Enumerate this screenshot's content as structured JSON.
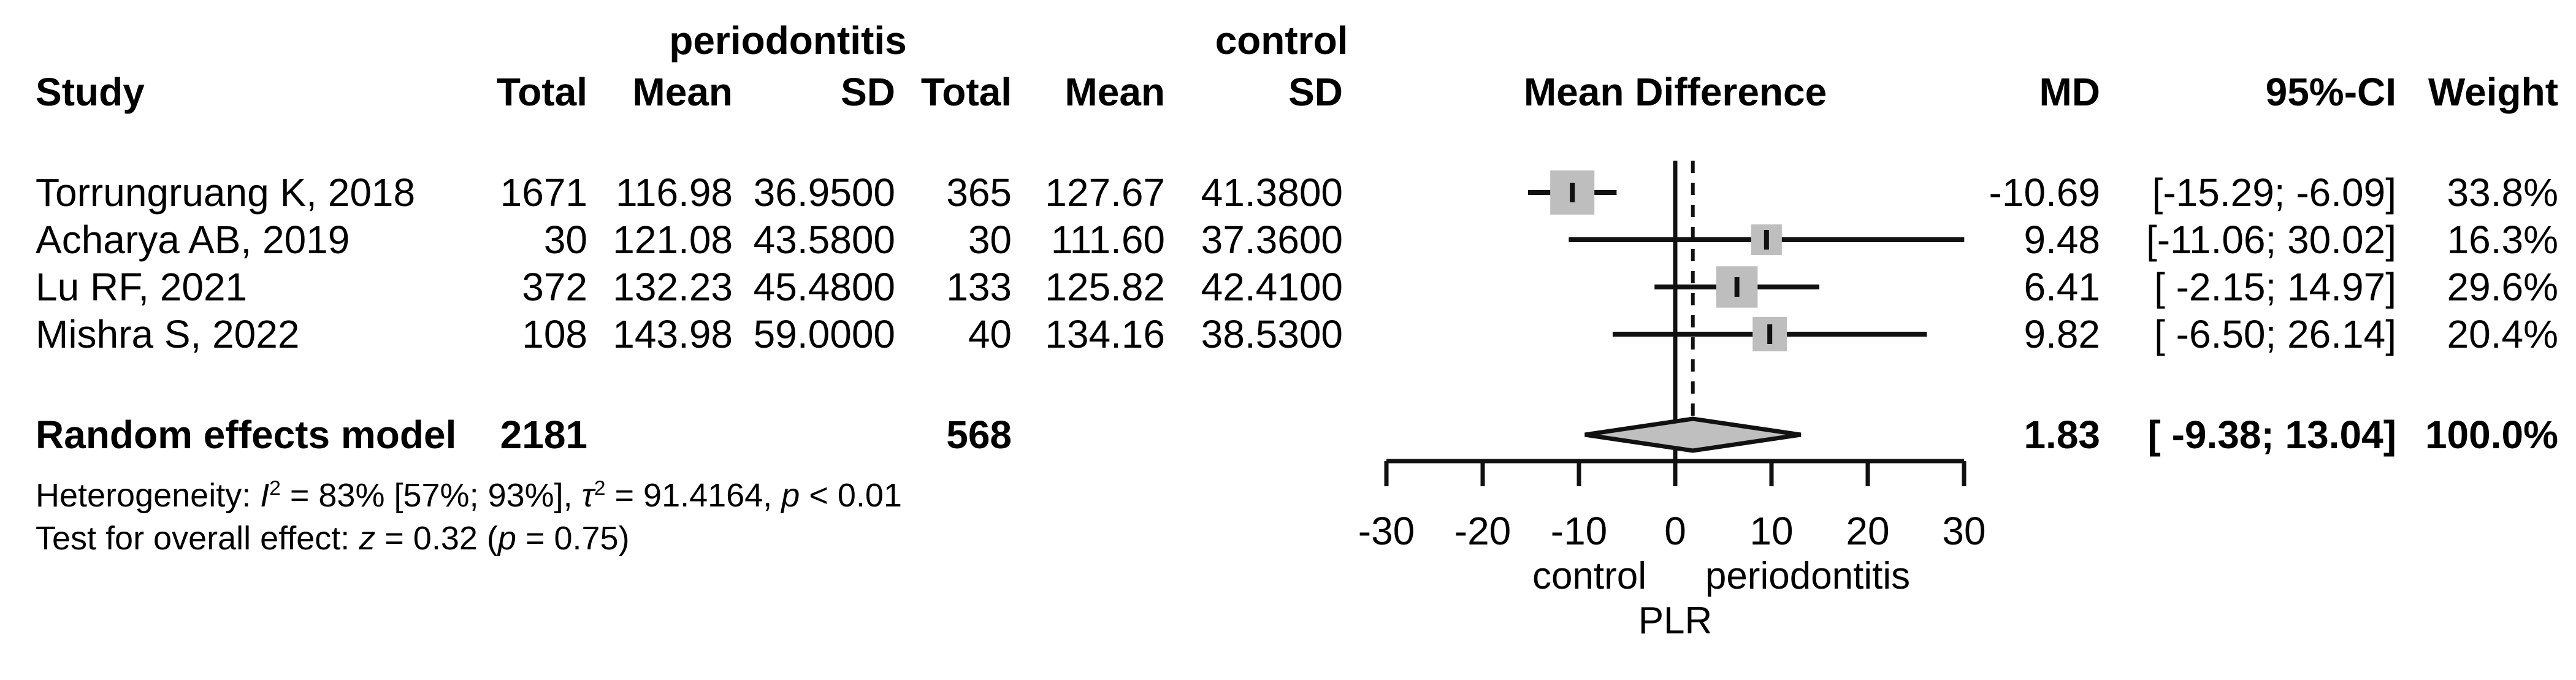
{
  "table": {
    "col_study": "Study",
    "group_periodontitis": "periodontitis",
    "group_control": "control",
    "col_total_p": "Total",
    "col_mean_p": "Mean",
    "col_sd_p": "SD",
    "col_total_c": "Total",
    "col_mean_c": "Mean",
    "col_sd_c": "SD",
    "col_mean_difference": "Mean Difference",
    "col_md": "MD",
    "col_ci": "95%-CI",
    "col_weight": "Weight"
  },
  "studies": [
    {
      "name": "Torrungruang K, 2018",
      "total_p": "1671",
      "mean_p": "116.98",
      "sd_p": "36.9500",
      "total_c": "365",
      "mean_c": "127.67",
      "sd_c": "41.3800",
      "md_label": "-10.69",
      "ci_label": "[-15.29; -6.09]",
      "weight_label": "33.8%",
      "md": -10.69,
      "lo": -15.29,
      "hi": -6.09,
      "weight": 33.8
    },
    {
      "name": "Acharya AB, 2019",
      "total_p": "30",
      "mean_p": "121.08",
      "sd_p": "43.5800",
      "total_c": "30",
      "mean_c": "111.60",
      "sd_c": "37.3600",
      "md_label": "9.48",
      "ci_label": "[-11.06; 30.02]",
      "weight_label": "16.3%",
      "md": 9.48,
      "lo": -11.06,
      "hi": 30.02,
      "weight": 16.3
    },
    {
      "name": "Lu RF, 2021",
      "total_p": "372",
      "mean_p": "132.23",
      "sd_p": "45.4800",
      "total_c": "133",
      "mean_c": "125.82",
      "sd_c": "42.4100",
      "md_label": "6.41",
      "ci_label": "[ -2.15; 14.97]",
      "weight_label": "29.6%",
      "md": 6.41,
      "lo": -2.15,
      "hi": 14.97,
      "weight": 29.6
    },
    {
      "name": "Mishra S, 2022",
      "total_p": "108",
      "mean_p": "143.98",
      "sd_p": "59.0000",
      "total_c": "40",
      "mean_c": "134.16",
      "sd_c": "38.5300",
      "md_label": "9.82",
      "ci_label": "[ -6.50; 26.14]",
      "weight_label": "20.4%",
      "md": 9.82,
      "lo": -6.5,
      "hi": 26.14,
      "weight": 20.4
    }
  ],
  "pooled": {
    "name": "Random effects model",
    "total_p": "2181",
    "total_c": "568",
    "md_label": "1.83",
    "ci_label": "[ -9.38; 13.04]",
    "weight_label": "100.0%",
    "md": 1.83,
    "lo": -9.38,
    "hi": 13.04
  },
  "footnotes": {
    "het_prefix": "Heterogeneity: ",
    "het_i": "I",
    "het_i_sup": "2",
    "het_mid1": " = 83% [57%; 93%], ",
    "het_tau": "τ",
    "het_tau_sup": "2",
    "het_mid2": " = 91.4164, ",
    "het_p": "p",
    "het_end": " < 0.01",
    "test_prefix": "Test for overall effect: ",
    "test_z": "z",
    "test_mid": " = 0.32 (",
    "test_p": "p",
    "test_end": " = 0.75)"
  },
  "axis": {
    "label_left": "control",
    "label_right": "periodontitis",
    "xlabel": "PLR"
  },
  "chart_data": {
    "type": "forest",
    "title": "",
    "xlabel": "PLR",
    "effect_measure": "Mean Difference",
    "xlim": [
      -30,
      30
    ],
    "x_ticks": [
      -30,
      -20,
      -10,
      0,
      10,
      20,
      30
    ],
    "zero_line": 0,
    "pooled_dashed_line": 1.83,
    "direction_labels": {
      "left": "control",
      "right": "periodontitis"
    },
    "studies": [
      {
        "name": "Torrungruang K, 2018",
        "n_periodontitis": 1671,
        "mean_periodontitis": 116.98,
        "sd_periodontitis": 36.95,
        "n_control": 365,
        "mean_control": 127.67,
        "sd_control": 41.38,
        "md": -10.69,
        "ci_low": -15.29,
        "ci_high": -6.09,
        "weight_pct": 33.8
      },
      {
        "name": "Acharya AB, 2019",
        "n_periodontitis": 30,
        "mean_periodontitis": 121.08,
        "sd_periodontitis": 43.58,
        "n_control": 30,
        "mean_control": 111.6,
        "sd_control": 37.36,
        "md": 9.48,
        "ci_low": -11.06,
        "ci_high": 30.02,
        "weight_pct": 16.3
      },
      {
        "name": "Lu RF, 2021",
        "n_periodontitis": 372,
        "mean_periodontitis": 132.23,
        "sd_periodontitis": 45.48,
        "n_control": 133,
        "mean_control": 125.82,
        "sd_control": 42.41,
        "md": 6.41,
        "ci_low": -2.15,
        "ci_high": 14.97,
        "weight_pct": 29.6
      },
      {
        "name": "Mishra S, 2022",
        "n_periodontitis": 108,
        "mean_periodontitis": 143.98,
        "sd_periodontitis": 59.0,
        "n_control": 40,
        "mean_control": 134.16,
        "sd_control": 38.53,
        "md": 9.82,
        "ci_low": -6.5,
        "ci_high": 26.14,
        "weight_pct": 20.4
      }
    ],
    "pooled": {
      "model": "Random effects model",
      "n_periodontitis": 2181,
      "n_control": 568,
      "md": 1.83,
      "ci_low": -9.38,
      "ci_high": 13.04,
      "weight_pct": 100.0
    },
    "heterogeneity": {
      "I2": "83%",
      "I2_ci": "[57%; 93%]",
      "tau2": 91.4164,
      "p": "< 0.01"
    },
    "overall_effect_test": {
      "z": 0.32,
      "p": 0.75
    }
  }
}
